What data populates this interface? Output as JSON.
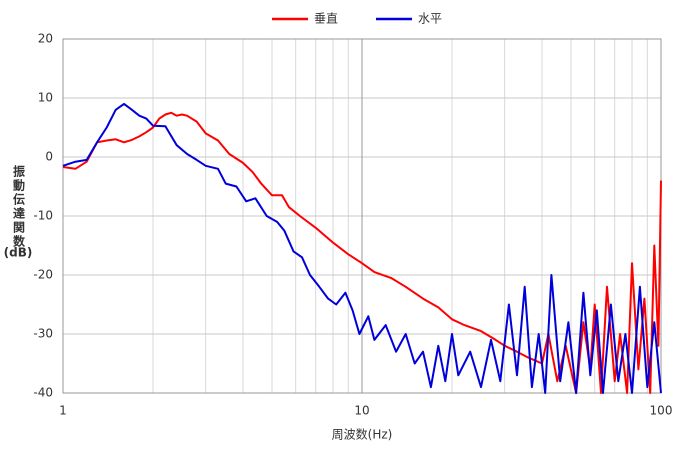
{
  "chart_data": {
    "type": "line",
    "xlabel": "周波数(Hz)",
    "ylabel": "振動伝達関数",
    "ylabel_unit": "(dB)",
    "log_x": true,
    "grid": true,
    "legend": "top",
    "xlim": [
      1,
      100
    ],
    "xticks": [
      1,
      10,
      100
    ],
    "ylim": [
      -40,
      20
    ],
    "yticks": [
      20,
      10,
      0,
      -10,
      -20,
      -30,
      -40
    ],
    "series": [
      {
        "name": "垂直",
        "color": "#ff0000",
        "x": [
          1.0,
          1.1,
          1.2,
          1.3,
          1.4,
          1.5,
          1.6,
          1.7,
          1.8,
          1.9,
          2.0,
          2.1,
          2.2,
          2.3,
          2.4,
          2.5,
          2.6,
          2.8,
          3.0,
          3.3,
          3.6,
          4.0,
          4.3,
          4.6,
          5.0,
          5.4,
          5.7,
          6.2,
          7,
          8,
          9,
          10,
          11,
          12.5,
          14,
          16,
          18,
          20,
          22,
          25,
          28,
          30,
          33,
          36,
          40,
          42,
          45,
          48,
          52,
          55,
          58,
          60,
          63,
          66,
          70,
          73,
          77,
          80,
          84,
          88,
          92,
          95,
          98,
          100
        ],
        "values": [
          -1.7,
          -2.0,
          -0.8,
          2.5,
          2.8,
          3.0,
          2.5,
          2.9,
          3.5,
          4.2,
          5.0,
          6.5,
          7.2,
          7.5,
          7.0,
          7.2,
          7.0,
          6.0,
          4.0,
          2.8,
          0.5,
          -1.0,
          -2.5,
          -4.5,
          -6.5,
          -6.5,
          -8.5,
          -10,
          -12,
          -14.5,
          -16.5,
          -18,
          -19.5,
          -20.5,
          -22,
          -24,
          -25.5,
          -27.5,
          -28.5,
          -29.5,
          -31,
          -32,
          -33,
          -34,
          -35,
          -30,
          -38,
          -32,
          -40,
          -28,
          -36,
          -25,
          -40,
          -22,
          -38,
          -30,
          -40,
          -18,
          -36,
          -24,
          -40,
          -15,
          -32,
          -4
        ]
      },
      {
        "name": "水平",
        "color": "#0000dd",
        "x": [
          1.0,
          1.1,
          1.2,
          1.3,
          1.4,
          1.5,
          1.6,
          1.7,
          1.8,
          1.9,
          2.0,
          2.2,
          2.4,
          2.6,
          2.8,
          3.0,
          3.3,
          3.5,
          3.8,
          4.1,
          4.4,
          4.8,
          5.2,
          5.5,
          5.9,
          6.3,
          6.7,
          7.2,
          7.7,
          8.2,
          8.8,
          9.3,
          9.8,
          10.5,
          11,
          12,
          13,
          14,
          15,
          16,
          17,
          18,
          19,
          20,
          21,
          23,
          25,
          27,
          29,
          31,
          33,
          35,
          37,
          39,
          41,
          43,
          46,
          49,
          52,
          55,
          58,
          61,
          64,
          68,
          72,
          76,
          80,
          85,
          90,
          95,
          100
        ],
        "values": [
          -1.5,
          -0.8,
          -0.5,
          2.5,
          5,
          8,
          9,
          8,
          7,
          6.5,
          5.3,
          5.2,
          2.0,
          0.5,
          -0.5,
          -1.5,
          -2,
          -4.5,
          -5,
          -7.5,
          -7,
          -10,
          -11,
          -12.5,
          -16,
          -17,
          -20,
          -22,
          -24,
          -25,
          -23,
          -26,
          -30,
          -27,
          -31,
          -28.5,
          -33,
          -30,
          -35,
          -33,
          -39,
          -32,
          -38,
          -30,
          -37,
          -33,
          -39,
          -31,
          -38,
          -25,
          -37,
          -22,
          -39,
          -30,
          -40,
          -20,
          -38,
          -28,
          -40,
          -23,
          -37,
          -26,
          -40,
          -25,
          -38,
          -30,
          -40,
          -22,
          -39,
          -28,
          -40
        ]
      }
    ]
  }
}
